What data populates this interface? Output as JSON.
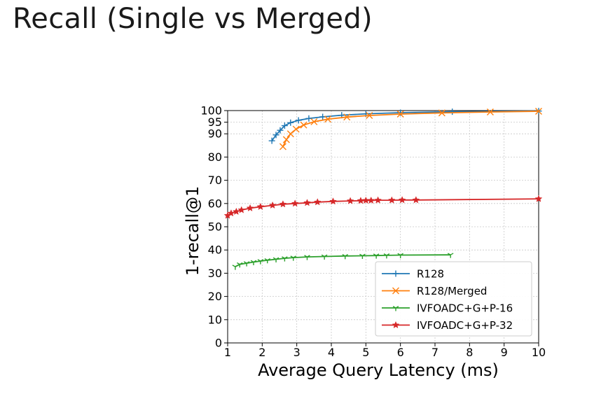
{
  "slide": {
    "title": "Recall (Single vs Merged)"
  },
  "colors": {
    "R128": "#1f77b4",
    "R128/Merged": "#ff7f0e",
    "IVFOADC+G+P-16": "#2ca02c",
    "IVFOADC+G+P-32": "#d62728"
  },
  "chart_data": {
    "type": "line",
    "title": "",
    "xlabel": "Average Query Latency (ms)",
    "ylabel": "1-recall@1",
    "xlim": [
      1,
      10
    ],
    "ylim": [
      0,
      100
    ],
    "xticks": [
      1,
      2,
      3,
      4,
      5,
      6,
      7,
      8,
      9,
      10
    ],
    "xtick_labels": [
      "1",
      "2",
      "3",
      "4",
      "5",
      "6",
      "7",
      "8",
      "9",
      "10"
    ],
    "yticks": [
      0,
      10,
      20,
      30,
      40,
      50,
      60,
      70,
      80,
      90,
      95,
      100
    ],
    "ytick_labels": [
      "0",
      "10",
      "20",
      "30",
      "40",
      "50",
      "60",
      "70",
      "80",
      "90",
      "95",
      "100"
    ],
    "grid": true,
    "legend_position": "lower-right",
    "series": [
      {
        "name": "R128",
        "marker": "+",
        "x": [
          2.28,
          2.4,
          2.52,
          2.65,
          2.82,
          3.05,
          3.35,
          3.75,
          4.3,
          5.0,
          6.0,
          7.5,
          10.0
        ],
        "y": [
          87.0,
          89.5,
          91.5,
          93.5,
          94.8,
          95.8,
          96.6,
          97.3,
          98.0,
          98.6,
          99.1,
          99.5,
          99.8
        ]
      },
      {
        "name": "R128/Merged",
        "marker": "x",
        "x": [
          2.6,
          2.7,
          2.82,
          2.98,
          3.2,
          3.5,
          3.9,
          4.45,
          5.1,
          6.0,
          7.2,
          8.6,
          10.0
        ],
        "y": [
          84.5,
          87.5,
          90.0,
          92.0,
          93.8,
          95.2,
          96.3,
          97.2,
          97.9,
          98.5,
          99.0,
          99.4,
          99.7
        ]
      },
      {
        "name": "IVFOADC+G+P-16",
        "marker": "1",
        "x": [
          1.22,
          1.35,
          1.55,
          1.75,
          1.95,
          2.15,
          2.4,
          2.65,
          2.9,
          3.3,
          3.8,
          4.4,
          4.9,
          5.3,
          5.6,
          6.0,
          7.45
        ],
        "y": [
          32.8,
          33.8,
          34.3,
          34.8,
          35.2,
          35.6,
          36.0,
          36.4,
          36.7,
          37.0,
          37.2,
          37.4,
          37.5,
          37.6,
          37.7,
          37.8,
          37.9
        ]
      },
      {
        "name": "IVFOADC+G+P-32",
        "marker": "*",
        "x": [
          1.0,
          1.1,
          1.25,
          1.4,
          1.65,
          1.95,
          2.3,
          2.6,
          2.95,
          3.3,
          3.6,
          4.05,
          4.55,
          4.85,
          5.0,
          5.15,
          5.35,
          5.75,
          6.05,
          6.45,
          10.0
        ],
        "y": [
          54.8,
          55.8,
          56.5,
          57.2,
          58.0,
          58.6,
          59.2,
          59.7,
          60.0,
          60.3,
          60.6,
          60.9,
          61.1,
          61.2,
          61.3,
          61.3,
          61.4,
          61.4,
          61.5,
          61.5,
          62.0
        ]
      }
    ]
  }
}
